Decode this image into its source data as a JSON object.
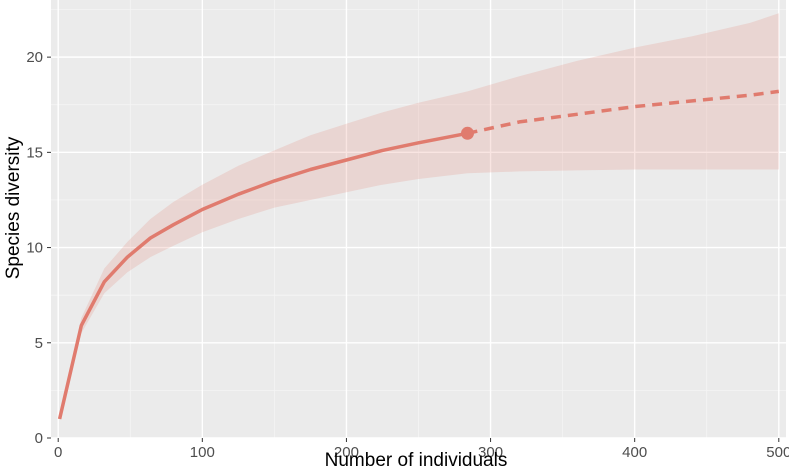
{
  "chart_data": {
    "type": "line",
    "xlabel": "Number of individuals",
    "ylabel": "Species diversity",
    "xlim": [
      -5,
      505
    ],
    "ylim": [
      0,
      23
    ],
    "x_ticks": [
      0,
      100,
      200,
      300,
      400,
      500
    ],
    "y_ticks": [
      0,
      5,
      10,
      15,
      20
    ],
    "grid": true,
    "legend": "none",
    "colors": {
      "panel_background": "#ebebeb",
      "grid_major": "#ffffff",
      "grid_minor": "#f5f5f5",
      "line": "#e07b6e",
      "ribbon": "#e07b6e"
    },
    "series": [
      {
        "style": "interpolated",
        "x": [
          1,
          16,
          32,
          48,
          64,
          80,
          100,
          125,
          150,
          175,
          200,
          225,
          250,
          284
        ],
        "y": [
          1.0,
          5.9,
          8.2,
          9.5,
          10.5,
          11.2,
          12.0,
          12.8,
          13.5,
          14.1,
          14.6,
          15.1,
          15.5,
          16.0
        ],
        "lower": [
          1.0,
          5.5,
          7.6,
          8.7,
          9.5,
          10.1,
          10.8,
          11.5,
          12.1,
          12.5,
          12.9,
          13.3,
          13.6,
          13.9
        ],
        "upper": [
          1.0,
          6.3,
          8.9,
          10.3,
          11.5,
          12.4,
          13.3,
          14.3,
          15.1,
          15.9,
          16.5,
          17.1,
          17.6,
          18.2
        ]
      },
      {
        "style": "extrapolated",
        "x": [
          284,
          320,
          360,
          400,
          440,
          480,
          500
        ],
        "y": [
          16.0,
          16.6,
          17.0,
          17.4,
          17.7,
          18.0,
          18.2
        ],
        "lower": [
          13.9,
          14.0,
          14.05,
          14.1,
          14.1,
          14.1,
          14.1
        ],
        "upper": [
          18.2,
          19.0,
          19.8,
          20.5,
          21.1,
          21.8,
          22.3
        ]
      }
    ],
    "observed_point": {
      "x": 284,
      "y": 16.0
    }
  }
}
